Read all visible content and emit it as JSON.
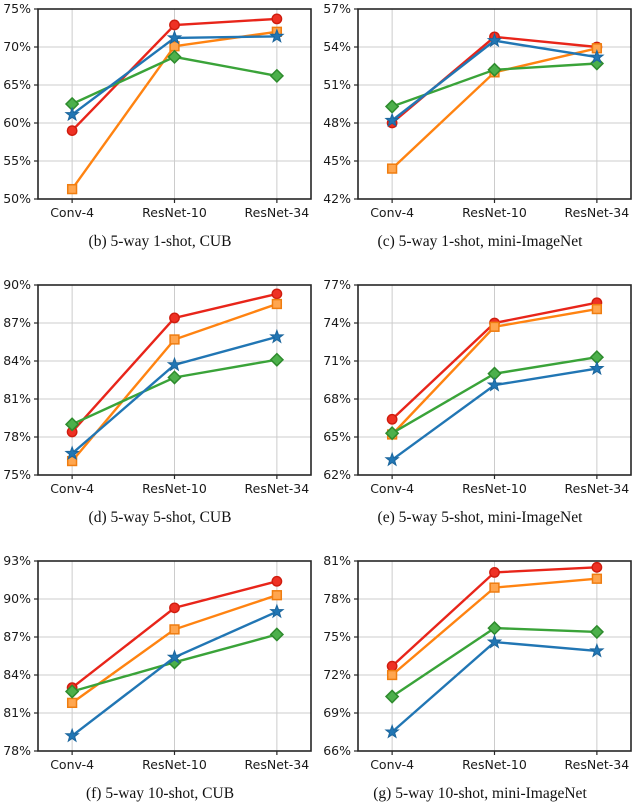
{
  "page": {
    "background": "#ffffff",
    "grid_color": "#cccccc",
    "axis_color": "#262626",
    "tick_label_color": "#1a1a1a"
  },
  "chart_data": [
    {
      "id": "b",
      "type": "line",
      "caption": "(b) 5-way 1-shot, CUB",
      "categories": [
        "Conv-4",
        "ResNet-10",
        "ResNet-34"
      ],
      "ylim": [
        50,
        75
      ],
      "yticks": [
        50,
        55,
        60,
        65,
        70,
        75
      ],
      "ytick_suffix": "%",
      "grid": true,
      "legend": "none",
      "series": [
        {
          "name": "red-circle",
          "color": "#e8251a",
          "marker": "circle",
          "marker_fill": "#ee3124",
          "marker_edge": "#cf1c0e",
          "values": [
            59.0,
            72.9,
            73.7
          ]
        },
        {
          "name": "orange-square",
          "color": "#ff8311",
          "marker": "square",
          "marker_fill": "#ffa64f",
          "marker_edge": "#ef7d10",
          "values": [
            51.3,
            70.1,
            72.0
          ]
        },
        {
          "name": "green-diamond",
          "color": "#3aa339",
          "marker": "diamond",
          "marker_fill": "#4cb04b",
          "marker_edge": "#2e8b2d",
          "values": [
            62.5,
            68.7,
            66.2
          ]
        },
        {
          "name": "blue-star",
          "color": "#2176b4",
          "marker": "star",
          "marker_fill": "#2176b4",
          "marker_edge": "#1b659c",
          "values": [
            61.1,
            71.2,
            71.4
          ]
        }
      ]
    },
    {
      "id": "c",
      "type": "line",
      "caption": "(c) 5-way 1-shot, mini-ImageNet",
      "categories": [
        "Conv-4",
        "ResNet-10",
        "ResNet-34"
      ],
      "ylim": [
        42,
        57
      ],
      "yticks": [
        42,
        45,
        48,
        51,
        54,
        57
      ],
      "ytick_suffix": "%",
      "grid": true,
      "legend": "none",
      "series": [
        {
          "name": "red-circle",
          "color": "#e8251a",
          "marker": "circle",
          "marker_fill": "#ee3124",
          "marker_edge": "#cf1c0e",
          "values": [
            48.0,
            54.8,
            54.0
          ]
        },
        {
          "name": "orange-square",
          "color": "#ff8311",
          "marker": "square",
          "marker_fill": "#ffa64f",
          "marker_edge": "#ef7d10",
          "values": [
            44.4,
            52.0,
            53.9
          ]
        },
        {
          "name": "green-diamond",
          "color": "#3aa339",
          "marker": "diamond",
          "marker_fill": "#4cb04b",
          "marker_edge": "#2e8b2d",
          "values": [
            49.3,
            52.2,
            52.7
          ]
        },
        {
          "name": "blue-star",
          "color": "#2176b4",
          "marker": "star",
          "marker_fill": "#2176b4",
          "marker_edge": "#1b659c",
          "values": [
            48.2,
            54.5,
            53.2
          ]
        }
      ]
    },
    {
      "id": "d",
      "type": "line",
      "caption": "(d) 5-way 5-shot, CUB",
      "categories": [
        "Conv-4",
        "ResNet-10",
        "ResNet-34"
      ],
      "ylim": [
        75,
        90
      ],
      "yticks": [
        75,
        78,
        81,
        84,
        87,
        90
      ],
      "ytick_suffix": "%",
      "grid": true,
      "legend": "none",
      "series": [
        {
          "name": "red-circle",
          "color": "#e8251a",
          "marker": "circle",
          "marker_fill": "#ee3124",
          "marker_edge": "#cf1c0e",
          "values": [
            78.4,
            87.4,
            89.3
          ]
        },
        {
          "name": "orange-square",
          "color": "#ff8311",
          "marker": "square",
          "marker_fill": "#ffa64f",
          "marker_edge": "#ef7d10",
          "values": [
            76.1,
            85.7,
            88.5
          ]
        },
        {
          "name": "green-diamond",
          "color": "#3aa339",
          "marker": "diamond",
          "marker_fill": "#4cb04b",
          "marker_edge": "#2e8b2d",
          "values": [
            79.0,
            82.7,
            84.1
          ]
        },
        {
          "name": "blue-star",
          "color": "#2176b4",
          "marker": "star",
          "marker_fill": "#2176b4",
          "marker_edge": "#1b659c",
          "values": [
            76.7,
            83.7,
            85.9
          ]
        }
      ]
    },
    {
      "id": "e",
      "type": "line",
      "caption": "(e) 5-way 5-shot, mini-ImageNet",
      "categories": [
        "Conv-4",
        "ResNet-10",
        "ResNet-34"
      ],
      "ylim": [
        62,
        77
      ],
      "yticks": [
        62,
        65,
        68,
        71,
        74,
        77
      ],
      "ytick_suffix": "%",
      "grid": true,
      "legend": "none",
      "series": [
        {
          "name": "red-circle",
          "color": "#e8251a",
          "marker": "circle",
          "marker_fill": "#ee3124",
          "marker_edge": "#cf1c0e",
          "values": [
            66.4,
            74.0,
            75.6
          ]
        },
        {
          "name": "orange-square",
          "color": "#ff8311",
          "marker": "square",
          "marker_fill": "#ffa64f",
          "marker_edge": "#ef7d10",
          "values": [
            65.2,
            73.7,
            75.1
          ]
        },
        {
          "name": "green-diamond",
          "color": "#3aa339",
          "marker": "diamond",
          "marker_fill": "#4cb04b",
          "marker_edge": "#2e8b2d",
          "values": [
            65.3,
            70.0,
            71.3
          ]
        },
        {
          "name": "blue-star",
          "color": "#2176b4",
          "marker": "star",
          "marker_fill": "#2176b4",
          "marker_edge": "#1b659c",
          "values": [
            63.2,
            69.1,
            70.4
          ]
        }
      ]
    },
    {
      "id": "f",
      "type": "line",
      "caption": "(f) 5-way 10-shot, CUB",
      "categories": [
        "Conv-4",
        "ResNet-10",
        "ResNet-34"
      ],
      "ylim": [
        78,
        93
      ],
      "yticks": [
        78,
        81,
        84,
        87,
        90,
        93
      ],
      "ytick_suffix": "%",
      "grid": true,
      "legend": "none",
      "series": [
        {
          "name": "red-circle",
          "color": "#e8251a",
          "marker": "circle",
          "marker_fill": "#ee3124",
          "marker_edge": "#cf1c0e",
          "values": [
            83.0,
            89.3,
            91.4
          ]
        },
        {
          "name": "orange-square",
          "color": "#ff8311",
          "marker": "square",
          "marker_fill": "#ffa64f",
          "marker_edge": "#ef7d10",
          "values": [
            81.8,
            87.6,
            90.3
          ]
        },
        {
          "name": "green-diamond",
          "color": "#3aa339",
          "marker": "diamond",
          "marker_fill": "#4cb04b",
          "marker_edge": "#2e8b2d",
          "values": [
            82.7,
            85.0,
            87.2
          ]
        },
        {
          "name": "blue-star",
          "color": "#2176b4",
          "marker": "star",
          "marker_fill": "#2176b4",
          "marker_edge": "#1b659c",
          "values": [
            79.2,
            85.4,
            89.0
          ]
        }
      ]
    },
    {
      "id": "g",
      "type": "line",
      "caption": "(g) 5-way 10-shot, mini-ImageNet",
      "categories": [
        "Conv-4",
        "ResNet-10",
        "ResNet-34"
      ],
      "ylim": [
        66,
        81
      ],
      "yticks": [
        66,
        69,
        72,
        75,
        78,
        81
      ],
      "ytick_suffix": "%",
      "grid": true,
      "legend": "none",
      "series": [
        {
          "name": "red-circle",
          "color": "#e8251a",
          "marker": "circle",
          "marker_fill": "#ee3124",
          "marker_edge": "#cf1c0e",
          "values": [
            72.7,
            80.1,
            80.5
          ]
        },
        {
          "name": "orange-square",
          "color": "#ff8311",
          "marker": "square",
          "marker_fill": "#ffa64f",
          "marker_edge": "#ef7d10",
          "values": [
            72.0,
            78.9,
            79.6
          ]
        },
        {
          "name": "green-diamond",
          "color": "#3aa339",
          "marker": "diamond",
          "marker_fill": "#4cb04b",
          "marker_edge": "#2e8b2d",
          "values": [
            70.3,
            75.7,
            75.4
          ]
        },
        {
          "name": "blue-star",
          "color": "#2176b4",
          "marker": "star",
          "marker_fill": "#2176b4",
          "marker_edge": "#1b659c",
          "values": [
            67.5,
            74.6,
            73.9
          ]
        }
      ]
    }
  ]
}
